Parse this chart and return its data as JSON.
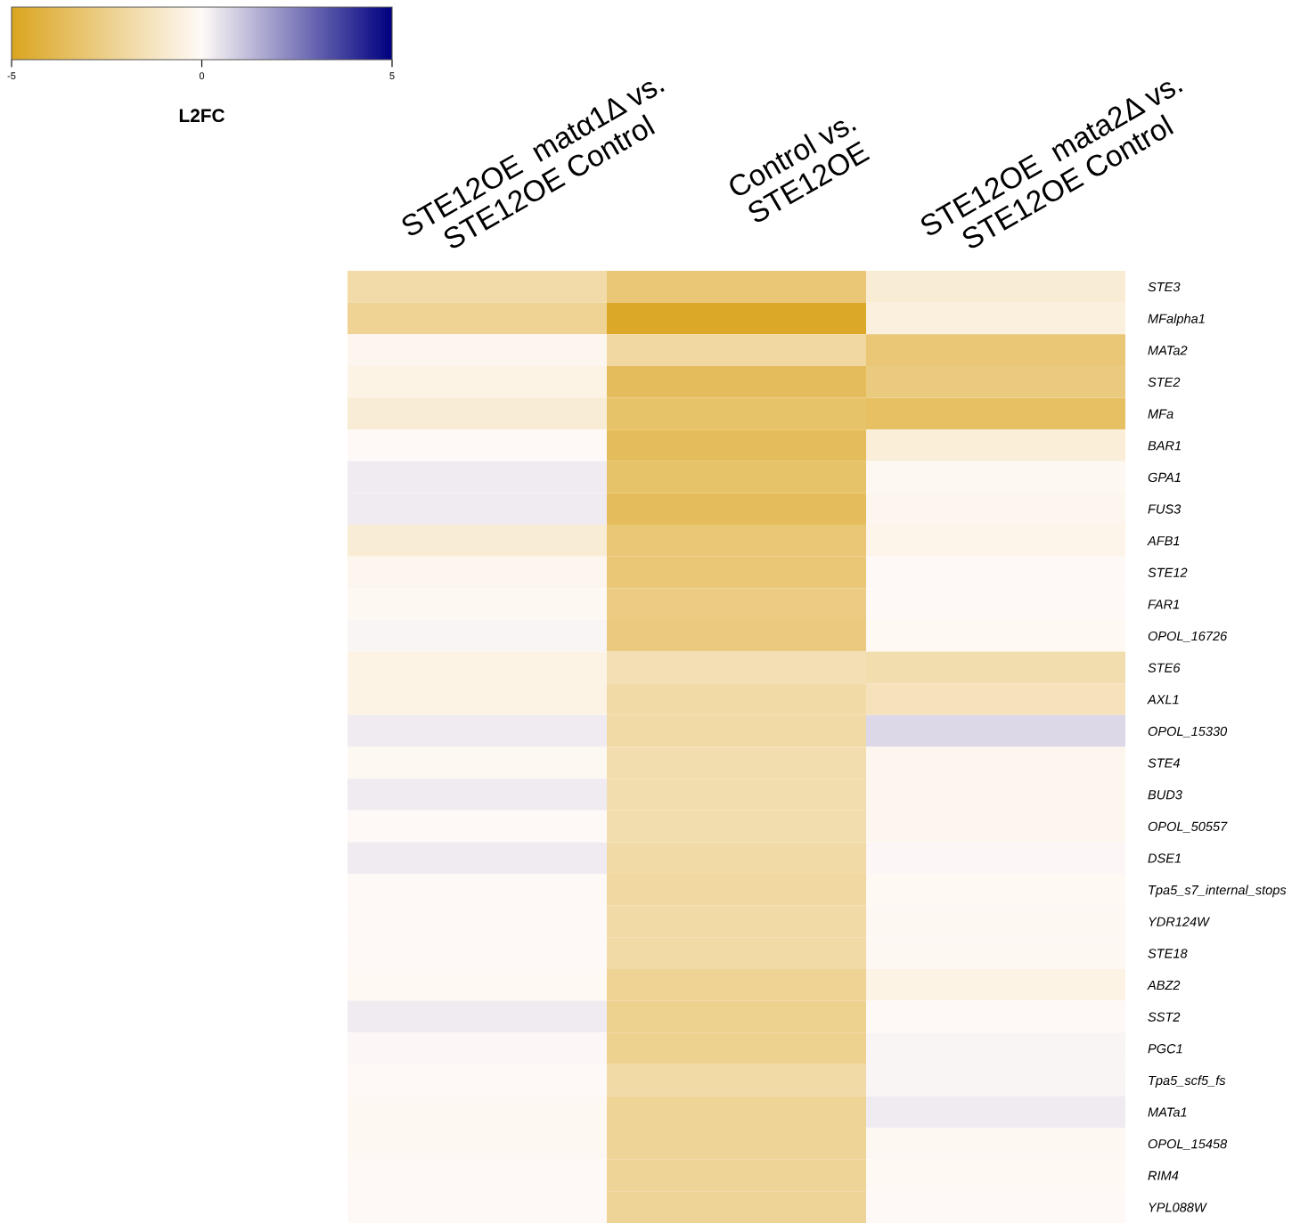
{
  "chart_data": {
    "type": "heatmap",
    "clabel": "L2FC",
    "clim": [
      -5,
      5
    ],
    "cticks": [
      -5,
      0,
      5
    ],
    "categories": [
      "STE12OE  matα1Δ vs.\nSTE12OE Control",
      "Control vs.\nSTE12OE",
      "STE12OE  mata2Δ vs.\nSTE12OE Control"
    ],
    "y_categories": [
      "STE3",
      "MFalpha1",
      "MATa2",
      "STE2",
      "MFa",
      "BAR1",
      "GPA1",
      "FUS3",
      "AFB1",
      "STE12",
      "FAR1",
      "OPOL_16726",
      "STE6",
      "AXL1",
      "OPOL_15330",
      "STE4",
      "BUD3",
      "OPOL_50557",
      "DSE1",
      "Tpa5_s7_internal_stops",
      "YDR124W",
      "STE18",
      "ABZ2",
      "SST2",
      "PGC1",
      "Tpa5_scf5_fs",
      "MATa1",
      "OPOL_15458",
      "RIM4",
      "YPL088W"
    ],
    "cells": [
      [
        -1.8,
        -3.0,
        -0.8
      ],
      [
        -2.3,
        -4.8,
        -0.6
      ],
      [
        -0.2,
        -2.0,
        -3.0
      ],
      [
        -0.4,
        -3.6,
        -2.8
      ],
      [
        -0.8,
        -3.3,
        -3.4
      ],
      [
        0.0,
        -3.6,
        -0.7
      ],
      [
        0.3,
        -3.3,
        -0.1
      ],
      [
        0.3,
        -3.6,
        -0.2
      ],
      [
        -0.8,
        -3.0,
        -0.3
      ],
      [
        -0.2,
        -3.0,
        0.0
      ],
      [
        -0.1,
        -2.7,
        0.0
      ],
      [
        0.1,
        -2.8,
        -0.05
      ],
      [
        -0.4,
        -1.6,
        -1.7
      ],
      [
        -0.4,
        -1.9,
        -1.4
      ],
      [
        0.3,
        -1.9,
        0.7
      ],
      [
        -0.1,
        -1.7,
        -0.2
      ],
      [
        0.3,
        -1.7,
        -0.2
      ],
      [
        0.0,
        -1.7,
        -0.2
      ],
      [
        0.3,
        -1.9,
        0.05
      ],
      [
        0.0,
        -2.0,
        -0.05
      ],
      [
        0.0,
        -1.9,
        -0.1
      ],
      [
        0.0,
        -1.9,
        -0.1
      ],
      [
        -0.05,
        -2.3,
        -0.4
      ],
      [
        0.3,
        -2.4,
        0.0
      ],
      [
        0.05,
        -2.4,
        0.1
      ],
      [
        0.0,
        -1.9,
        0.1
      ],
      [
        -0.1,
        -2.2,
        0.3
      ],
      [
        -0.1,
        -2.2,
        -0.1
      ],
      [
        0.0,
        -2.2,
        -0.05
      ],
      [
        0.0,
        -2.2,
        0.0
      ]
    ]
  }
}
